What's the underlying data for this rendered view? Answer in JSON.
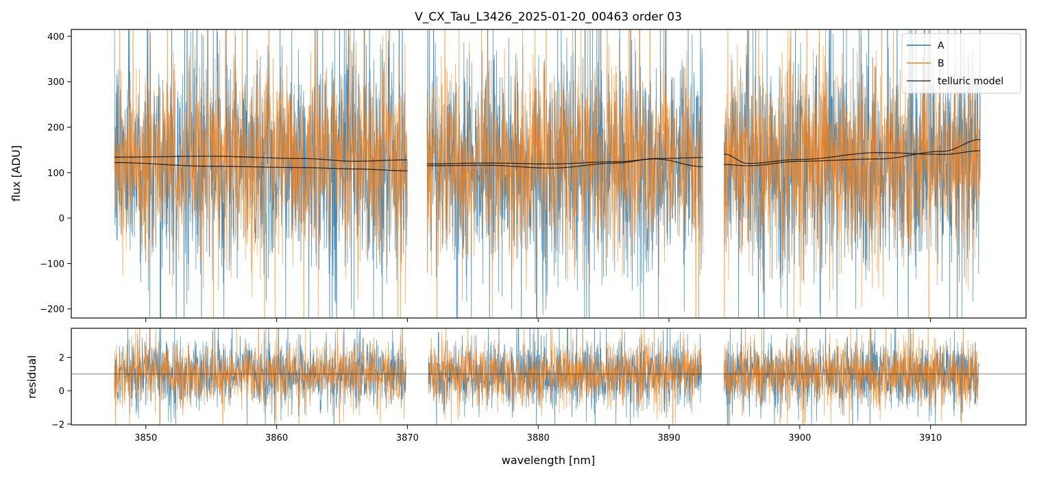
{
  "chart_data": [
    {
      "type": "line",
      "panel": "top",
      "title": "V_CX_Tau_L3426_2025-01-20_00463  order 03",
      "xlabel": "",
      "ylabel": "flux [ADU]",
      "xlim": [
        3844.3,
        3917.3
      ],
      "ylim": [
        -220,
        415
      ],
      "yticks": [
        -200,
        -100,
        0,
        100,
        200,
        300,
        400
      ],
      "xticks": [
        3850,
        3860,
        3870,
        3880,
        3890,
        3900,
        3910
      ],
      "show_xtick_labels": false,
      "grid": false,
      "legend": {
        "placement": "top-right",
        "entries": [
          "A",
          "B",
          "telluric model"
        ]
      },
      "colors": {
        "A": "#1f77b4",
        "B": "#ff7f0e",
        "telluric model": "#000000"
      },
      "segments": [
        {
          "x_start": 3847.6,
          "x_end": 3870.0
        },
        {
          "x_start": 3871.5,
          "x_end": 3892.6
        },
        {
          "x_start": 3894.2,
          "x_end": 3913.8
        }
      ],
      "series": [
        {
          "name": "A",
          "kind": "noisy_spectrum",
          "approx_center": 120,
          "approx_spread": 120
        },
        {
          "name": "B",
          "kind": "noisy_spectrum",
          "approx_center": 125,
          "approx_spread": 100
        },
        {
          "name": "telluric model",
          "kind": "smooth",
          "curves": [
            {
              "x": [
                3847.6,
                3855,
                3862,
                3866,
                3870.0
              ],
              "y": [
                134,
                136,
                131,
                125,
                128
              ]
            },
            {
              "x": [
                3847.6,
                3855,
                3862,
                3866,
                3870.0
              ],
              "y": [
                122,
                114,
                111,
                108,
                104
              ]
            },
            {
              "x": [
                3871.5,
                3876,
                3881,
                3886,
                3889,
                3892.6
              ],
              "y": [
                119,
                121,
                119,
                124,
                130,
                113
              ]
            },
            {
              "x": [
                3871.5,
                3876,
                3881,
                3886,
                3889,
                3892.6
              ],
              "y": [
                115,
                116,
                110,
                121,
                131,
                133
              ]
            },
            {
              "x": [
                3894.2,
                3896,
                3900,
                3906,
                3911,
                3913.8
              ],
              "y": [
                141,
                120,
                129,
                144,
                140,
                148
              ]
            },
            {
              "x": [
                3894.2,
                3896,
                3900,
                3906,
                3911,
                3913.8
              ],
              "y": [
                118,
                115,
                125,
                130,
                147,
                173
              ]
            }
          ]
        }
      ]
    },
    {
      "type": "line",
      "panel": "bottom",
      "xlabel": "wavelength [nm]",
      "ylabel": "residual",
      "xlim": [
        3844.3,
        3917.3
      ],
      "ylim": [
        -2.05,
        3.75
      ],
      "yticks": [
        -2,
        0,
        2
      ],
      "xticks": [
        3850,
        3860,
        3870,
        3880,
        3890,
        3900,
        3910
      ],
      "grid": false,
      "reference_line_y": 1.0,
      "colors": {
        "A": "#1f77b4",
        "B": "#ff7f0e",
        "reference": "#000000"
      },
      "segments": [
        {
          "x_start": 3847.6,
          "x_end": 3869.9
        },
        {
          "x_start": 3871.6,
          "x_end": 3892.5
        },
        {
          "x_start": 3894.2,
          "x_end": 3913.7
        }
      ],
      "series": [
        {
          "name": "A",
          "kind": "noisy_residual",
          "approx_center": 1.0,
          "approx_spread": 1.0
        },
        {
          "name": "B",
          "kind": "noisy_residual",
          "approx_center": 1.0,
          "approx_spread": 0.95
        }
      ]
    }
  ]
}
